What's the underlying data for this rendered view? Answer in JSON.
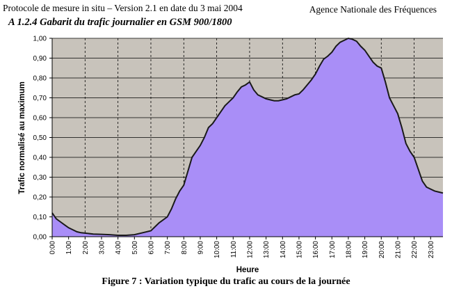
{
  "header": {
    "left": "Protocole de mesure in situ – Version 2.1 en date du 3 mai 2004",
    "right": "Agence Nationale des Fréquences"
  },
  "section_title": "A 1.2.4 Gabarit du trafic journalier en GSM 900/1800",
  "caption": "Figure 7 : Variation typique du trafic au cours de la journée",
  "colors": {
    "plot_background": "#c8c3bb",
    "area_fill": "#a98ef7",
    "line": "#1a1a1a"
  },
  "chart_data": {
    "type": "area",
    "title": "",
    "xlabel": "Heure",
    "ylabel": "Trafic normalisé au maximum",
    "ylim": [
      0,
      1
    ],
    "xlim": [
      0,
      23.75
    ],
    "grid": {
      "horizontal": "solid",
      "vertical": "dashed, every 2 hours"
    },
    "legend": "none",
    "x_ticks": [
      "0:00",
      "1:00",
      "2:00",
      "3:00",
      "4:00",
      "5:00",
      "6:00",
      "7:00",
      "8:00",
      "9:00",
      "10:00",
      "11:00",
      "12:00",
      "13:00",
      "14:00",
      "15:00",
      "16:00",
      "17:00",
      "18:00",
      "19:00",
      "20:00",
      "21:00",
      "22:00",
      "23:00"
    ],
    "y_ticks": [
      "0,00",
      "0,10",
      "0,20",
      "0,30",
      "0,40",
      "0,50",
      "0,60",
      "0,70",
      "0,80",
      "0,90",
      "1,00"
    ],
    "series": [
      {
        "x": [
          0,
          0.25,
          0.5,
          0.75,
          1.0,
          1.25,
          1.5,
          1.75,
          2.0,
          2.5,
          3.0,
          3.5,
          4.0,
          4.5,
          5.0,
          5.5,
          6.0,
          6.5,
          7.0,
          7.25,
          7.5,
          7.75,
          8.0,
          8.25,
          8.5,
          8.75,
          9.0,
          9.25,
          9.5,
          9.75,
          10.0,
          10.25,
          10.5,
          10.75,
          11.0,
          11.25,
          11.5,
          11.75,
          12.0,
          12.25,
          12.5,
          12.75,
          13.0,
          13.25,
          13.5,
          13.75,
          14.0,
          14.25,
          14.5,
          14.75,
          15.0,
          15.25,
          15.5,
          15.75,
          16.0,
          16.25,
          16.5,
          16.75,
          17.0,
          17.25,
          17.5,
          17.75,
          18.0,
          18.25,
          18.5,
          18.75,
          19.0,
          19.25,
          19.5,
          19.75,
          20.0,
          20.25,
          20.5,
          20.75,
          21.0,
          21.25,
          21.5,
          21.75,
          22.0,
          22.25,
          22.5,
          22.75,
          23.0,
          23.25,
          23.5,
          23.75
        ],
        "values": [
          0.12,
          0.09,
          0.075,
          0.06,
          0.045,
          0.035,
          0.025,
          0.02,
          0.018,
          0.013,
          0.012,
          0.01,
          0.007,
          0.007,
          0.01,
          0.02,
          0.03,
          0.07,
          0.1,
          0.14,
          0.19,
          0.23,
          0.26,
          0.33,
          0.4,
          0.43,
          0.46,
          0.5,
          0.55,
          0.57,
          0.6,
          0.63,
          0.66,
          0.68,
          0.7,
          0.73,
          0.755,
          0.765,
          0.78,
          0.74,
          0.715,
          0.705,
          0.695,
          0.69,
          0.685,
          0.685,
          0.69,
          0.695,
          0.705,
          0.715,
          0.72,
          0.74,
          0.765,
          0.79,
          0.82,
          0.86,
          0.895,
          0.91,
          0.93,
          0.96,
          0.98,
          0.99,
          1.0,
          0.995,
          0.985,
          0.96,
          0.94,
          0.91,
          0.88,
          0.86,
          0.85,
          0.78,
          0.7,
          0.66,
          0.62,
          0.55,
          0.47,
          0.43,
          0.4,
          0.34,
          0.28,
          0.25,
          0.24,
          0.23,
          0.225,
          0.22
        ]
      }
    ]
  }
}
